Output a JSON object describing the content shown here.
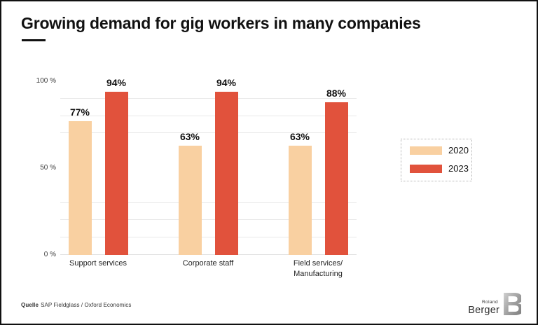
{
  "slide": {
    "title": "Growing demand for gig workers in many companies",
    "source": {
      "label": "Quelle",
      "text": "SAP Fieldglass / Oxford Economics"
    }
  },
  "logo": {
    "line1": "Roland",
    "line2": "Berger",
    "monogram": "B"
  },
  "colors": {
    "bar_2020": "#F9D0A1",
    "bar_2023": "#E1523C",
    "grid": "#E8E8E8",
    "title_text": "#111111",
    "legend_border": "#B3B3B3"
  },
  "chart_data": {
    "type": "bar",
    "title": "Growing demand for gig workers in many companies",
    "categories": [
      "Support services",
      "Corporate staff",
      "Field services/\nManufacturing"
    ],
    "series": [
      {
        "name": "2020",
        "color": "#F9D0A1",
        "values": [
          77,
          63,
          63
        ]
      },
      {
        "name": "2023",
        "color": "#E1523C",
        "values": [
          94,
          94,
          88
        ]
      }
    ],
    "value_label_format": "{v}%",
    "y_axis": {
      "min": 0,
      "max": 100,
      "ticks": [
        {
          "label": "100 %",
          "value": 100
        },
        {
          "label": "50 %",
          "value": 50
        },
        {
          "label": "0 %",
          "value": 0
        }
      ]
    },
    "gridlines_percent": [
      10,
      20,
      30,
      70,
      80,
      90
    ],
    "grid": true,
    "legend_position": "right"
  }
}
